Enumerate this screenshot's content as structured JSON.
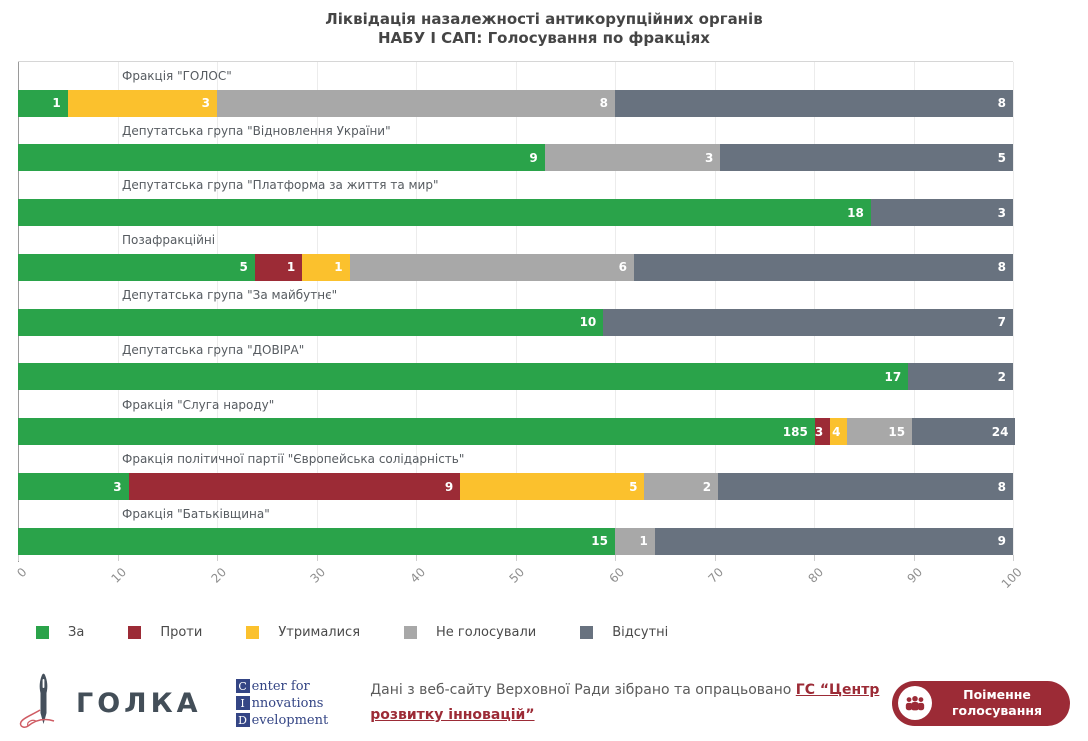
{
  "title": {
    "line1": "Ліквідація назалежності антикорупційних органів",
    "line2": "НАБУ І САП: Голосування по фракціях"
  },
  "chart_data": {
    "type": "bar",
    "stacked": true,
    "orientation": "horizontal",
    "title": "Ліквідація назалежності антикорупційних органів НАБУ І САП: Голосування по фракціях",
    "note": "values are MP counts; each faction bar is normalized to 100% width",
    "x_range": [
      0,
      100
    ],
    "x_ticks": [
      0,
      10,
      20,
      30,
      40,
      50,
      60,
      70,
      80,
      90,
      100
    ],
    "grid": true,
    "legend_position": "bottom",
    "legend": [
      {
        "label": "За",
        "color": "#2aa34a"
      },
      {
        "label": "Проти",
        "color": "#9c2b36"
      },
      {
        "label": "Утрималися",
        "color": "#fbc12d"
      },
      {
        "label": "Не голосували",
        "color": "#a8a8a8"
      },
      {
        "label": "Відсутні",
        "color": "#68727f"
      }
    ],
    "factions": [
      {
        "name": "Фракція \"ГОЛОС\"",
        "segments": [
          [
            "За",
            1
          ],
          [
            "Утрималися",
            3
          ],
          [
            "Не голосували",
            8
          ],
          [
            "Відсутні",
            8
          ]
        ]
      },
      {
        "name": "Депутатська група \"Відновлення України\"",
        "segments": [
          [
            "За",
            9
          ],
          [
            "Не голосували",
            3
          ],
          [
            "Відсутні",
            5
          ]
        ]
      },
      {
        "name": "Депутатська група \"Платформа за життя та мир\"",
        "segments": [
          [
            "За",
            18
          ],
          [
            "Відсутні",
            3
          ]
        ]
      },
      {
        "name": "Позафракційні",
        "segments": [
          [
            "За",
            5
          ],
          [
            "Проти",
            1
          ],
          [
            "Утрималися",
            1
          ],
          [
            "Не голосували",
            6
          ],
          [
            "Відсутні",
            8
          ]
        ]
      },
      {
        "name": "Депутатська група \"За майбутнє\"",
        "segments": [
          [
            "За",
            10
          ],
          [
            "Відсутні",
            7
          ]
        ]
      },
      {
        "name": "Депутатська група \"ДОВІРА\"",
        "segments": [
          [
            "За",
            17
          ],
          [
            "Відсутні",
            2
          ]
        ]
      },
      {
        "name": "Фракція \"Слуга народу\"",
        "segments": [
          [
            "За",
            185
          ],
          [
            "Проти",
            3
          ],
          [
            "Утрималися",
            4
          ],
          [
            "Не голосували",
            15
          ],
          [
            "Відсутні",
            24
          ]
        ]
      },
      {
        "name": "Фракція політичної партії \"Європейська солідарність\"",
        "segments": [
          [
            "За",
            3
          ],
          [
            "Проти",
            9
          ],
          [
            "Утрималися",
            5
          ],
          [
            "Не голосували",
            2
          ],
          [
            "Відсутні",
            8
          ]
        ]
      },
      {
        "name": "Фракція \"Батьківщина\"",
        "segments": [
          [
            "За",
            15
          ],
          [
            "Не голосували",
            1
          ],
          [
            "Відсутні",
            9
          ]
        ]
      }
    ]
  },
  "footer": {
    "golka_text": "ГОЛКА",
    "cid": {
      "lines": [
        {
          "initial": "C",
          "rest": "enter for"
        },
        {
          "initial": "I",
          "rest": "nnovations"
        },
        {
          "initial": "D",
          "rest": "evelopment"
        }
      ]
    },
    "attribution_prefix": "Дані з веб-сайту Верховної Ради зібрано та опрацьовано ",
    "attribution_link": "ГС “Центр розвитку інновацій”",
    "button_label": "Поіменне голосування"
  }
}
